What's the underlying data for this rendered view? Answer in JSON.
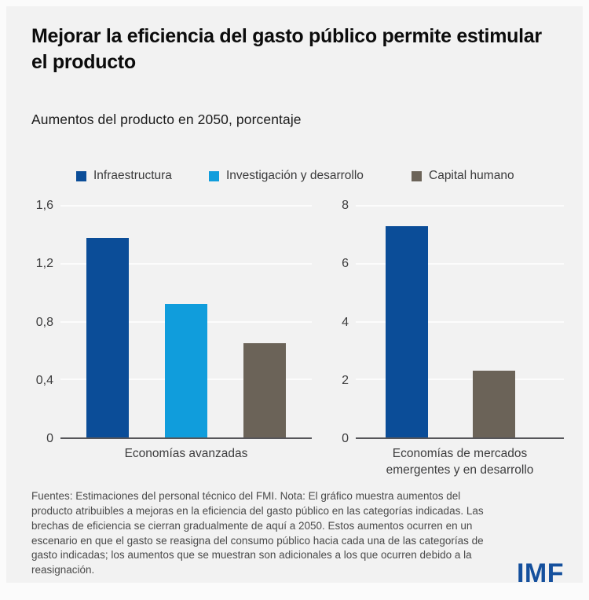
{
  "header": {
    "title": "Mejorar la eficiencia del gasto público permite estimular el producto",
    "subtitle": "Aumentos del producto en 2050, porcentaje"
  },
  "colors": {
    "background": "#f2f2f2",
    "infrastructure_blue": "#0b4d98",
    "rnd_light_blue": "#109ddc",
    "human_capital_brown": "#6b6358",
    "axis_gray": "#56565a",
    "logo_blue": "#15509d"
  },
  "legend": [
    {
      "label": "Infraestructura",
      "color": "#0b4d98"
    },
    {
      "label": "Investigación y desarrollo",
      "color": "#109ddc"
    },
    {
      "label": "Capital humano",
      "color": "#6b6358"
    }
  ],
  "chart_data": [
    {
      "type": "bar",
      "title": "Economías avanzadas",
      "categories": [
        "Infraestructura",
        "Investigación y desarrollo",
        "Capital humano"
      ],
      "values": [
        1.38,
        0.92,
        0.65
      ],
      "ylim": [
        0,
        1.6
      ],
      "yticks": [
        {
          "label": "1,6",
          "value": 1.6
        },
        {
          "label": "1,2",
          "value": 1.2
        },
        {
          "label": "0,8",
          "value": 0.8
        },
        {
          "label": "0,4",
          "value": 0.4
        },
        {
          "label": "0",
          "value": 0
        }
      ],
      "grid": true,
      "legend_position": "top"
    },
    {
      "type": "bar",
      "title": "Economías de mercados\nemergentes y en desarrollo",
      "categories": [
        "Infraestructura",
        "Capital humano"
      ],
      "values": [
        7.3,
        2.3
      ],
      "ylim": [
        0,
        8
      ],
      "yticks": [
        {
          "label": "8",
          "value": 8
        },
        {
          "label": "6",
          "value": 6
        },
        {
          "label": "4",
          "value": 4
        },
        {
          "label": "2",
          "value": 2
        },
        {
          "label": "0",
          "value": 0
        }
      ],
      "grid": true,
      "legend_position": "top"
    }
  ],
  "footer": {
    "note": "Fuentes: Estimaciones del personal técnico del FMI. Nota: El gráfico muestra aumentos del producto atribuibles a mejoras en la eficiencia del gasto público en las categorías indicadas. Las brechas de eficiencia se cierran gradualmente de aquí a 2050. Estos aumentos ocurren en un escenario en que el gasto se reasigna del consumo público hacia cada una de las categorías de gasto indicadas; los aumentos que se muestran son adicionales a los que ocurren debido a la reasignación.",
    "logo": "IMF"
  }
}
